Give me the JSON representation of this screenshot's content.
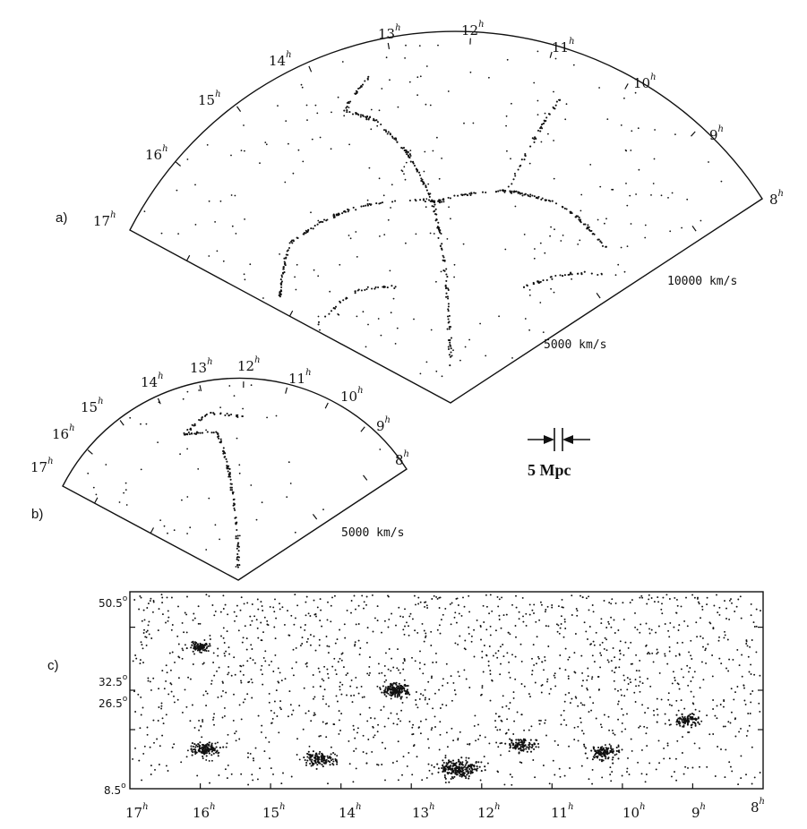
{
  "figure": {
    "panel_a": {
      "label": "a)",
      "hours": [
        "17",
        "16",
        "15",
        "14",
        "13",
        "12",
        "11",
        "10",
        "9",
        "8"
      ],
      "hour_suffix": "h",
      "velocity_labels": [
        "5000 km/s",
        "10000 km/s"
      ]
    },
    "panel_b": {
      "label": "b)",
      "hours": [
        "17",
        "16",
        "15",
        "14",
        "13",
        "12",
        "11",
        "10",
        "9",
        "8"
      ],
      "hour_suffix": "h",
      "velocity_labels": [
        "5000 km/s"
      ]
    },
    "scale_bar": {
      "label": "5 Mpc"
    },
    "panel_c": {
      "label": "c)",
      "hours": [
        "17",
        "16",
        "15",
        "14",
        "13",
        "12",
        "11",
        "10",
        "9",
        "8"
      ],
      "hour_suffix": "h",
      "declinations": [
        "50.5",
        "32.5",
        "26.5",
        "8.5"
      ],
      "degree_symbol": "o"
    },
    "ink_color": "#111111"
  }
}
